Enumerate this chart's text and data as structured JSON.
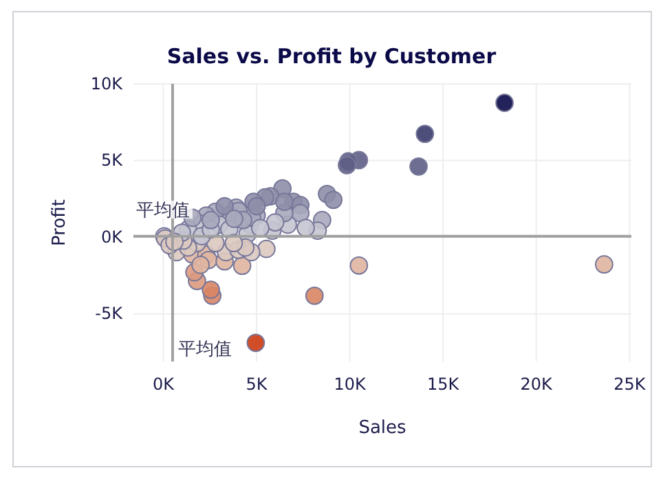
{
  "chart_data": {
    "type": "scatter",
    "title": "Sales vs. Profit by Customer",
    "xlabel": "Sales",
    "ylabel": "Profit",
    "xlim": [
      -1600,
      25100
    ],
    "ylim": [
      -8100,
      10000
    ],
    "xticks": [
      {
        "value": 0,
        "label": "0K"
      },
      {
        "value": 5000,
        "label": "5K"
      },
      {
        "value": 10000,
        "label": "10K"
      },
      {
        "value": 15000,
        "label": "15K"
      },
      {
        "value": 20000,
        "label": "20K"
      },
      {
        "value": 25000,
        "label": "25K"
      }
    ],
    "yticks": [
      {
        "value": -5000,
        "label": "-5K"
      },
      {
        "value": 0,
        "label": "0K"
      },
      {
        "value": 5000,
        "label": "5K"
      },
      {
        "value": 10000,
        "label": "10K"
      }
    ],
    "grid": true,
    "marker": "circle",
    "ref_lines": [
      {
        "axis": "x",
        "value": 500,
        "label": "平均值",
        "color": "#a0a0a0"
      },
      {
        "axis": "y",
        "value": 60,
        "label": "平均值",
        "color": "#a0a0a0"
      }
    ],
    "x": [
      18300,
      14030,
      13690,
      10490,
      9930,
      9850,
      8780,
      9120,
      8520,
      8280,
      23640,
      10490,
      8110,
      4960,
      2630,
      2550,
      1810,
      1670,
      4230,
      5530,
      6390,
      5750,
      5460,
      4840,
      6980,
      7350,
      7350,
      6680,
      7640,
      5850,
      6490,
      3910,
      5010,
      4650,
      4520,
      3540,
      2800,
      2310,
      3000,
      3540,
      2060,
      1330,
      50,
      100,
      710,
      1570,
      2310,
      2430,
      3290,
      3360,
      4030,
      4720,
      4400,
      3780,
      2800,
      1810,
      1330,
      1080,
      340,
      2060,
      2550,
      4030,
      4760,
      4280,
      1570,
      2550,
      3290,
      6000,
      6490,
      5010,
      3800,
      1000,
      600,
      2000,
      5200
    ],
    "values": [
      8760,
      6740,
      4610,
      5030,
      4950,
      4700,
      2820,
      2440,
      1120,
      430,
      -1770,
      -1840,
      -3810,
      -6880,
      -3810,
      -3420,
      -2850,
      -2280,
      -1860,
      -760,
      3180,
      2670,
      2600,
      2310,
      2310,
      2100,
      1570,
      820,
      610,
      430,
      1570,
      1930,
      1420,
      820,
      220,
      1420,
      1660,
      1420,
      820,
      520,
      880,
      520,
      60,
      -70,
      -970,
      -1120,
      -1120,
      -1480,
      -1570,
      -970,
      -820,
      -970,
      -670,
      -380,
      -380,
      -380,
      -670,
      -220,
      -520,
      70,
      520,
      1720,
      1270,
      1120,
      1270,
      1120,
      2020,
      970,
      2310,
      2020,
      1200,
      300,
      -300,
      -1800,
      600
    ],
    "colors": [
      "#0b0a48",
      "#3b3b6b",
      "#5e5e86",
      "#5e5e86",
      "#5e5e86",
      "#5e5e86",
      "#8e8ea8",
      "#8e8ea8",
      "#a9a9bd",
      "#c5c5d1",
      "#e0b5a0",
      "#e0b5a0",
      "#d88564",
      "#cc3a10",
      "#d88564",
      "#d88564",
      "#dc9a7e",
      "#dc9a7e",
      "#e0b5a0",
      "#dcc9c0",
      "#8e8ea8",
      "#8e8ea8",
      "#8e8ea8",
      "#8e8ea8",
      "#8e8ea8",
      "#8e8ea8",
      "#a9a9bd",
      "#c5c5d1",
      "#c5c5d1",
      "#c5c5d1",
      "#a9a9bd",
      "#a9a9bd",
      "#a9a9bd",
      "#c5c5d1",
      "#c5c5d1",
      "#a9a9bd",
      "#a9a9bd",
      "#a9a9bd",
      "#c5c5d1",
      "#c5c5d1",
      "#c5c5d1",
      "#c5c5d1",
      "#c5c5d1",
      "#dcc9c0",
      "#dcc9c0",
      "#e0b5a0",
      "#e0b5a0",
      "#e0b5a0",
      "#e0b5a0",
      "#dcc9c0",
      "#dcc9c0",
      "#dcc9c0",
      "#dcc9c0",
      "#dcc9c0",
      "#dcc9c0",
      "#dcc9c0",
      "#dcc9c0",
      "#dcc9c0",
      "#dcc9c0",
      "#c5c5d1",
      "#c5c5d1",
      "#a9a9bd",
      "#a9a9bd",
      "#a9a9bd",
      "#a9a9bd",
      "#a9a9bd",
      "#8e8ea8",
      "#c5c5d1",
      "#8e8ea8",
      "#8e8ea8",
      "#a9a9bd",
      "#c5c5d1",
      "#dcc9c0",
      "#e0b5a0",
      "#c5c5d1"
    ]
  }
}
